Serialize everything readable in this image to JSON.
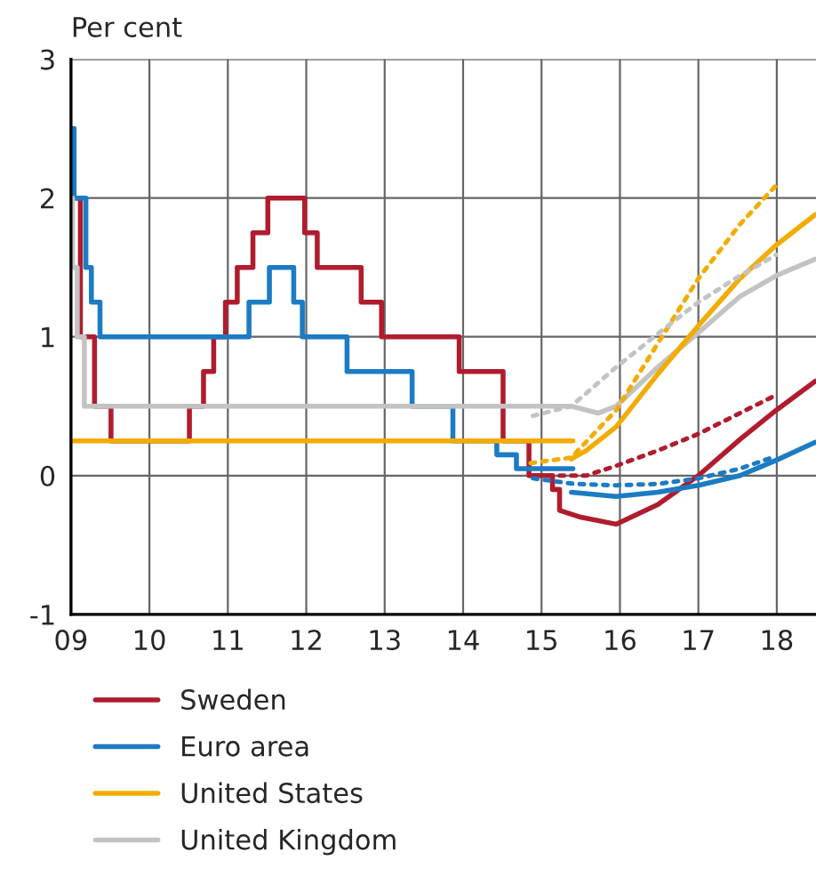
{
  "chart_data": {
    "type": "line",
    "ylabel": "Per cent",
    "xlim": [
      2009,
      2018.5
    ],
    "ylim": [
      -1,
      3
    ],
    "xticks": [
      {
        "value": 2009,
        "label": "09"
      },
      {
        "value": 2010,
        "label": "10"
      },
      {
        "value": 2011,
        "label": "11"
      },
      {
        "value": 2012,
        "label": "12"
      },
      {
        "value": 2013,
        "label": "13"
      },
      {
        "value": 2014,
        "label": "14"
      },
      {
        "value": 2015,
        "label": "15"
      },
      {
        "value": 2016,
        "label": "16"
      },
      {
        "value": 2017,
        "label": "17"
      },
      {
        "value": 2018,
        "label": "18"
      }
    ],
    "yticks": [
      -1,
      0,
      1,
      2,
      3
    ],
    "grid": true,
    "legend": "bottom",
    "marker": "none",
    "series": [
      {
        "name": "Sweden",
        "type": "line",
        "color": "#b01c2e",
        "x": [
          2009.0,
          2009.12,
          2009.12,
          2009.3,
          2009.3,
          2009.51,
          2009.51,
          2010.51,
          2010.51,
          2010.69,
          2010.69,
          2010.82,
          2010.82,
          2010.97,
          2010.97,
          2011.12,
          2011.12,
          2011.32,
          2011.32,
          2011.51,
          2011.51,
          2011.98,
          2011.98,
          2012.14,
          2012.14,
          2012.7,
          2012.7,
          2012.96,
          2012.96,
          2013.95,
          2013.95,
          2014.51,
          2014.51,
          2014.84,
          2014.84,
          2015.14,
          2015.14,
          2015.23,
          2015.23,
          2015.5,
          2015.95,
          2016.48,
          2017.0,
          2017.53,
          2017.99,
          2018.49
        ],
        "values": [
          2,
          2,
          1,
          1,
          0.5,
          0.5,
          0.25,
          0.25,
          0.5,
          0.5,
          0.75,
          0.75,
          1,
          1,
          1.25,
          1.25,
          1.5,
          1.5,
          1.75,
          1.75,
          2,
          2,
          1.75,
          1.75,
          1.5,
          1.5,
          1.25,
          1.25,
          1,
          1,
          0.75,
          0.75,
          0.25,
          0.25,
          0,
          0,
          -0.1,
          -0.1,
          -0.25,
          -0.3,
          -0.35,
          -0.21,
          0,
          0.26,
          0.47,
          0.68
        ]
      },
      {
        "name": "Euro area",
        "type": "step",
        "color": "#1b7bc4",
        "x": [
          2009.0,
          2009.04,
          2009.19,
          2009.26,
          2009.37,
          2011.27,
          2011.53,
          2011.84,
          2011.95,
          2012.52,
          2013.35,
          2013.87,
          2014.43,
          2014.68,
          2015.4
        ],
        "values": [
          2.5,
          2,
          1.5,
          1.25,
          1,
          1.25,
          1.5,
          1.25,
          1,
          0.75,
          0.5,
          0.25,
          0.15,
          0.05,
          0.05
        ]
      },
      {
        "name": "United States",
        "type": "step",
        "color": "#f2ac00",
        "x": [
          2009.0,
          2015.4
        ],
        "values": [
          0.25,
          0.25
        ]
      },
      {
        "name": "United Kingdom",
        "type": "line",
        "color": "#c3c3c3",
        "x": [
          2009.0,
          2009.02,
          2009.02,
          2009.08,
          2009.08,
          2009.17,
          2009.17,
          2015.38,
          2015.72,
          2015.95,
          2016.48,
          2017.0,
          2017.53,
          2017.99,
          2018.49
        ],
        "values": [
          2,
          2,
          1.5,
          1.5,
          1,
          1,
          0.5,
          0.5,
          0.45,
          0.5,
          0.78,
          1.03,
          1.29,
          1.44,
          1.56
        ]
      },
      {
        "color": "#1b7bc4",
        "x": [
          2015.38,
          2015.95,
          2016.48,
          2017.0,
          2017.53,
          2017.99,
          2018.49
        ],
        "values": [
          -0.12,
          -0.15,
          -0.12,
          -0.07,
          0,
          0.11,
          0.24
        ]
      },
      {
        "color": "#f2ac00",
        "x": [
          2015.38,
          2015.57,
          2015.95,
          2016.48,
          2017.0,
          2017.53,
          2017.99,
          2018.49
        ],
        "values": [
          0.12,
          0.18,
          0.35,
          0.73,
          1.08,
          1.42,
          1.66,
          1.88
        ]
      },
      {
        "color": "#b01c2e",
        "line_style": "dotted",
        "x": [
          2014.93,
          2015.57,
          2015.95,
          2016.48,
          2017.0,
          2017.53,
          2017.99
        ],
        "values": [
          0,
          0,
          0.07,
          0.18,
          0.3,
          0.45,
          0.58
        ]
      },
      {
        "color": "#1b7bc4",
        "line_style": "dotted",
        "x": [
          2014.89,
          2015.42,
          2015.95,
          2016.48,
          2017.0,
          2017.53,
          2017.99
        ],
        "values": [
          -0.02,
          -0.06,
          -0.07,
          -0.06,
          -0.02,
          0.05,
          0.14
        ]
      },
      {
        "color": "#f2ac00",
        "line_style": "dotted",
        "x": [
          2014.86,
          2015.38,
          2015.95,
          2016.48,
          2017.0,
          2017.53,
          2017.99
        ],
        "values": [
          0.09,
          0.13,
          0.47,
          0.95,
          1.42,
          1.81,
          2.09
        ]
      },
      {
        "color": "#c3c3c3",
        "line_style": "dotted",
        "x": [
          2014.89,
          2015.38,
          2015.95,
          2016.48,
          2017.0,
          2017.53,
          2017.99
        ],
        "values": [
          0.43,
          0.5,
          0.78,
          1.02,
          1.25,
          1.44,
          1.59
        ]
      }
    ]
  }
}
